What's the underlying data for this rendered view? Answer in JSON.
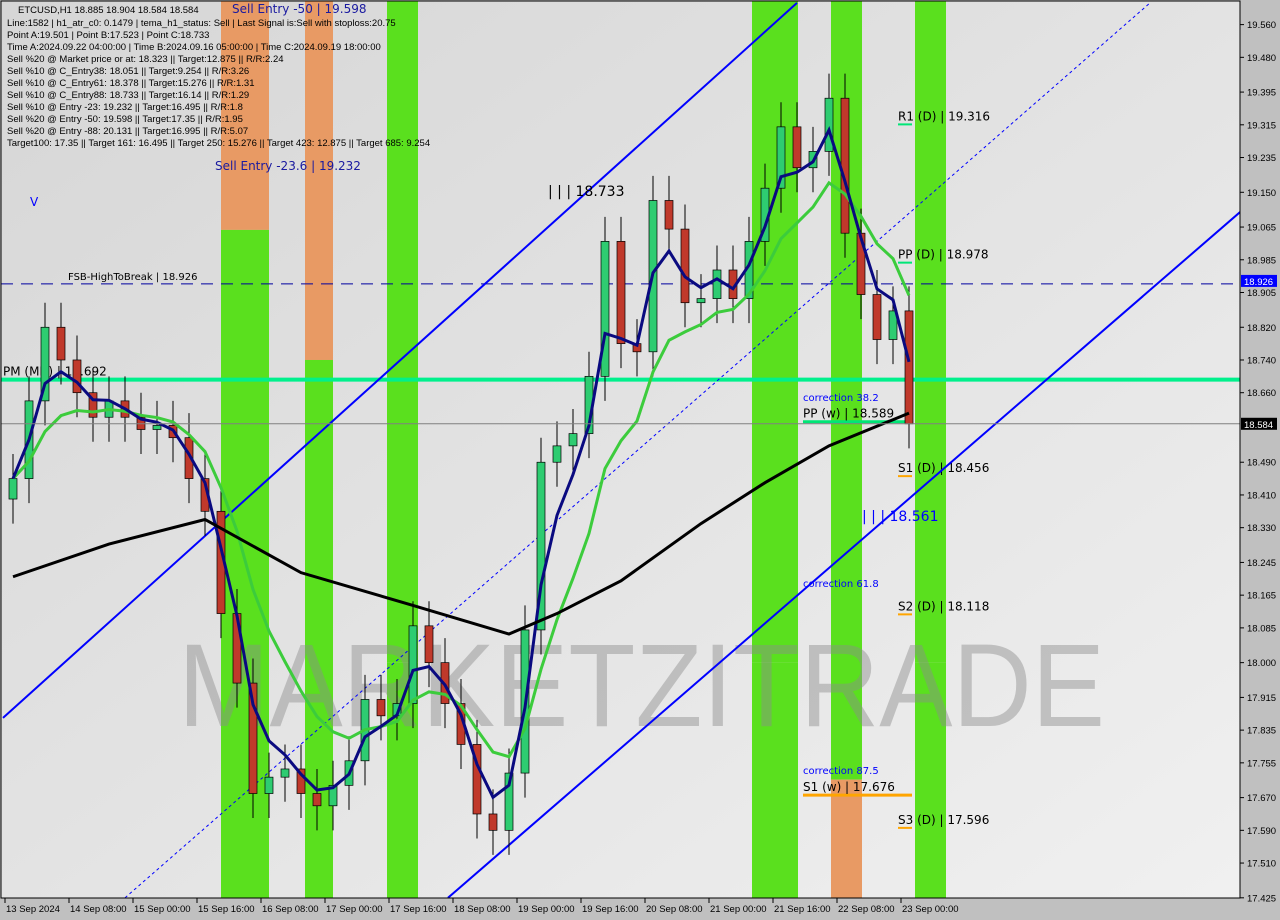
{
  "header": {
    "symbol_line": "ETCUSD,H1  18.885 18.904 18.584 18.584",
    "info_lines": [
      "Line:1582 | h1_atr_c0: 0.1479 | tema_h1_status: Sell | Last Signal is:Sell with stoploss:20.75",
      "Point A:19.501 | Point B:17.523 | Point C:18.733",
      "Time A:2024.09.22 04:00:00 | Time B:2024.09.16 05:00:00 | Time C:2024.09.19 18:00:00",
      "Sell %20 @ Market price or at: 18.323 || Target:12.875 || R/R:2.24",
      "Sell %10 @ C_Entry38: 18.051 || Target:9.254 || R/R:3.26",
      "Sell %10 @ C_Entry61: 18.378 || Target:15.276 || R/R:1.31",
      "Sell %10 @ C_Entry88: 18.733 || Target:16.14 || R/R:1.29",
      "Sell %10 @ Entry -23: 19.232 || Target:16.495 || R/R:1.8",
      "Sell %20 @ Entry -50: 19.598 || Target:17.35 || R/R:1.95",
      "Sell %20 @ Entry -88: 20.131 || Target:16.995 || R/R:5.07",
      "Target100: 17.35 || Target 161: 16.495 || Target 250: 15.276 || Target 423: 12.875 || Target 685: 9.254"
    ]
  },
  "annotations": {
    "sell_entry_50": "Sell Entry -50 | 19.598",
    "sell_entry_236": "Sell Entry -23.6 | 19.232",
    "point_c": "| | | 18.733",
    "point_low": "| | | 18.561",
    "correction_382": "correction 38.2",
    "correction_618": "correction 61.8",
    "correction_875": "correction 87.5",
    "wave_mark": "V"
  },
  "watermark": "MARKETZITRADE",
  "colors": {
    "background": "#dedede",
    "bull": "#2ecc71",
    "bear": "#c0392b",
    "tema": "#0a0a80",
    "ma_green": "#3ccc3c",
    "ma_black": "#000000",
    "channel": "#0000ff",
    "band_green": "#5ae01e",
    "band_orange": "#e89a64"
  },
  "chart_data": {
    "type": "candlestick",
    "title": "ETCUSD,H1",
    "ylim": [
      17.425,
      19.6
    ],
    "grid": false,
    "y_ticks": [
      19.56,
      19.48,
      19.395,
      19.315,
      19.235,
      19.15,
      19.065,
      18.985,
      18.905,
      18.82,
      18.74,
      18.66,
      18.49,
      18.41,
      18.33,
      18.245,
      18.165,
      18.085,
      18.0,
      17.915,
      17.835,
      17.755,
      17.67,
      17.59,
      17.51,
      17.425
    ],
    "time_ticks": [
      {
        "label": "13 Sep 2024",
        "time": "2024-09-13 16:00"
      },
      {
        "label": "14 Sep 08:00",
        "time": "2024-09-14 08:00"
      },
      {
        "label": "15 Sep 00:00",
        "time": "2024-09-15 00:00"
      },
      {
        "label": "15 Sep 16:00",
        "time": "2024-09-15 16:00"
      },
      {
        "label": "16 Sep 08:00",
        "time": "2024-09-16 08:00"
      },
      {
        "label": "17 Sep 00:00",
        "time": "2024-09-17 00:00"
      },
      {
        "label": "17 Sep 16:00",
        "time": "2024-09-17 16:00"
      },
      {
        "label": "18 Sep 08:00",
        "time": "2024-09-18 08:00"
      },
      {
        "label": "19 Sep 00:00",
        "time": "2024-09-19 00:00"
      },
      {
        "label": "19 Sep 16:00",
        "time": "2024-09-19 16:00"
      },
      {
        "label": "20 Sep 08:00",
        "time": "2024-09-20 08:00"
      },
      {
        "label": "21 Sep 00:00",
        "time": "2024-09-21 00:00"
      },
      {
        "label": "21 Sep 16:00",
        "time": "2024-09-21 16:00"
      },
      {
        "label": "22 Sep 08:00",
        "time": "2024-09-22 08:00"
      },
      {
        "label": "23 Sep 00:00",
        "time": "2024-09-23 00:00"
      }
    ],
    "x": [
      "2024-09-13 16:00",
      "2024-09-13 20:00",
      "2024-09-14 00:00",
      "2024-09-14 04:00",
      "2024-09-14 08:00",
      "2024-09-14 12:00",
      "2024-09-14 16:00",
      "2024-09-14 20:00",
      "2024-09-15 00:00",
      "2024-09-15 04:00",
      "2024-09-15 08:00",
      "2024-09-15 12:00",
      "2024-09-15 16:00",
      "2024-09-15 20:00",
      "2024-09-16 00:00",
      "2024-09-16 04:00",
      "2024-09-16 08:00",
      "2024-09-16 12:00",
      "2024-09-16 16:00",
      "2024-09-16 20:00",
      "2024-09-17 00:00",
      "2024-09-17 04:00",
      "2024-09-17 08:00",
      "2024-09-17 12:00",
      "2024-09-17 16:00",
      "2024-09-17 20:00",
      "2024-09-18 00:00",
      "2024-09-18 04:00",
      "2024-09-18 08:00",
      "2024-09-18 12:00",
      "2024-09-18 16:00",
      "2024-09-18 20:00",
      "2024-09-19 00:00",
      "2024-09-19 04:00",
      "2024-09-19 08:00",
      "2024-09-19 12:00",
      "2024-09-19 16:00",
      "2024-09-19 20:00",
      "2024-09-20 00:00",
      "2024-09-20 04:00",
      "2024-09-20 08:00",
      "2024-09-20 12:00",
      "2024-09-20 16:00",
      "2024-09-20 20:00",
      "2024-09-21 00:00",
      "2024-09-21 04:00",
      "2024-09-21 08:00",
      "2024-09-21 12:00",
      "2024-09-21 16:00",
      "2024-09-21 20:00",
      "2024-09-22 00:00",
      "2024-09-22 04:00",
      "2024-09-22 08:00",
      "2024-09-22 12:00",
      "2024-09-22 16:00",
      "2024-09-22 20:00",
      "2024-09-23 00:00"
    ],
    "close": [
      18.45,
      18.64,
      18.82,
      18.74,
      18.66,
      18.6,
      18.64,
      18.6,
      18.57,
      18.58,
      18.55,
      18.45,
      18.37,
      18.12,
      17.95,
      17.68,
      17.72,
      17.74,
      17.68,
      17.65,
      17.7,
      17.76,
      17.91,
      17.87,
      17.9,
      18.09,
      18.0,
      17.9,
      17.8,
      17.63,
      17.59,
      17.73,
      18.08,
      18.49,
      18.53,
      18.56,
      18.7,
      19.03,
      18.78,
      18.76,
      19.13,
      19.06,
      18.88,
      18.89,
      18.96,
      18.89,
      19.03,
      19.16,
      19.31,
      19.21,
      19.25,
      19.38,
      19.05,
      18.9,
      18.79,
      18.86,
      18.584
    ],
    "black_ma": {
      "x": [
        "2024-09-13 16:00",
        "2024-09-14 16:00",
        "2024-09-15 16:00",
        "2024-09-16 16:00",
        "2024-09-17 20:00",
        "2024-09-18 20:00",
        "2024-09-19 08:00",
        "2024-09-20 00:00",
        "2024-09-20 20:00",
        "2024-09-21 12:00",
        "2024-09-22 04:00",
        "2024-09-23 00:00"
      ],
      "values": [
        18.21,
        18.29,
        18.35,
        18.22,
        18.14,
        18.07,
        18.12,
        18.2,
        18.34,
        18.44,
        18.53,
        18.61
      ]
    },
    "levels": [
      {
        "name": "fsb-high-to-break",
        "label": "FSB-HighToBreak | 18.926",
        "price": 18.926,
        "color": "#0000a0",
        "group": "fsb"
      },
      {
        "name": "pm-mn",
        "label": "PM (MN) | 18.692",
        "price": 18.692,
        "color": "#00f08c",
        "group": "monthly"
      },
      {
        "name": "r1-d",
        "label": "R1 (D) | 19.316",
        "price": 19.316,
        "color": "#00e676",
        "group": "daily"
      },
      {
        "name": "pp-d",
        "label": "PP (D) | 18.978",
        "price": 18.978,
        "color": "#00e676",
        "group": "daily"
      },
      {
        "name": "s1-d",
        "label": "S1 (D) | 18.456",
        "price": 18.456,
        "color": "#ffa500",
        "group": "daily"
      },
      {
        "name": "s2-d",
        "label": "S2 (D) | 18.118",
        "price": 18.118,
        "color": "#ffa500",
        "group": "daily"
      },
      {
        "name": "s3-d",
        "label": "S3 (D) | 17.596",
        "price": 17.596,
        "color": "#ffa500",
        "group": "daily"
      },
      {
        "name": "pp-w",
        "label": "PP (w) | 18.589",
        "price": 18.589,
        "color": "#00e676",
        "group": "weekly"
      },
      {
        "name": "s1-w",
        "label": "S1 (w) | 17.676",
        "price": 17.676,
        "color": "#ffa500",
        "group": "weekly"
      }
    ],
    "bands": [
      {
        "start": "2024-09-15 22:00",
        "end": "2024-09-16 10:00",
        "upper_color": "#e89a64",
        "lower_color": "#5ae01e",
        "split_price": 19.058
      },
      {
        "start": "2024-09-16 19:00",
        "end": "2024-09-17 02:00",
        "upper_color": "#e89a64",
        "lower_color": "#5ae01e",
        "split_price": 18.74
      },
      {
        "start": "2024-09-17 15:30",
        "end": "2024-09-17 23:15",
        "upper_color": "#5ae01e",
        "lower_color": "#5ae01e",
        "split_price": 18.0
      },
      {
        "start": "2024-09-21 10:45",
        "end": "2024-09-21 22:15",
        "upper_color": "#5ae01e",
        "lower_color": "#5ae01e",
        "split_price": 18.0
      },
      {
        "start": "2024-09-22 06:30",
        "end": "2024-09-22 14:15",
        "upper_color": "#5ae01e",
        "lower_color": "#e89a64",
        "split_price": 17.714
      },
      {
        "start": "2024-09-23 03:30",
        "end": "2024-09-23 11:15",
        "upper_color": "#5ae01e",
        "lower_color": "#5ae01e",
        "split_price": 18.0
      }
    ],
    "trendlines": [
      {
        "name": "channel-upper",
        "from": [
          "2024-09-13 15:30",
          17.865
        ],
        "to": [
          "2024-09-21 22:00",
          19.613
        ],
        "style": "solid"
      },
      {
        "name": "channel-lower",
        "from": [
          "2024-09-18 06:45",
          17.425
        ],
        "to": [
          "2024-09-26 20:15",
          19.165
        ],
        "style": "solid"
      },
      {
        "name": "channel-mid",
        "from": [
          "2024-09-14 22:00",
          17.425
        ],
        "to": [
          "2024-09-25 14:15",
          19.613
        ],
        "style": "dotted"
      }
    ],
    "price_tags": [
      {
        "name": "fsb-price-tag",
        "value": "18.926",
        "price": 18.926,
        "bg": "#0000ff",
        "fg": "#ffffff"
      },
      {
        "name": "bid-price-tag",
        "value": "18.584",
        "price": 18.584,
        "bg": "#000000",
        "fg": "#ffffff"
      }
    ]
  }
}
